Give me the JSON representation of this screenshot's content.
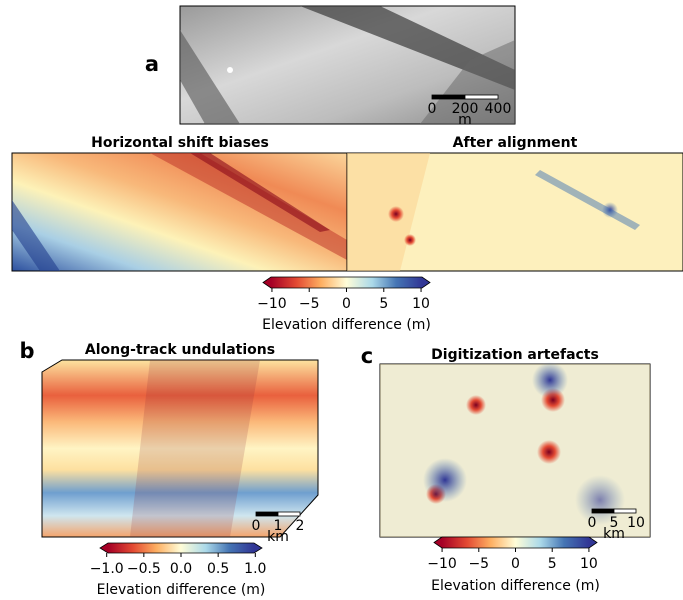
{
  "panels": [
    {
      "label": "a",
      "scale_bar": {
        "ticks": [
          0,
          200,
          400
        ],
        "unit": "m"
      },
      "subpanels": [
        {
          "title": "Horizontal shift biases"
        },
        {
          "title": "After alignment"
        }
      ],
      "colorbar": {
        "lim": [
          -11.2,
          11.2
        ],
        "ticks": [
          {
            "value": -10,
            "label": "−10"
          },
          {
            "value": -5,
            "label": "−5"
          },
          0,
          5,
          10
        ],
        "label": "Elevation difference (m)"
      }
    },
    {
      "label": "b",
      "title": "Along-track undulations",
      "scale_bar": {
        "ticks": [
          0,
          1,
          2
        ],
        "unit": "km"
      },
      "colorbar": {
        "lim": [
          -1.09,
          1.09
        ],
        "ticks": [
          {
            "value": -1,
            "label": "−1.0"
          },
          {
            "value": -0.5,
            "label": "−0.5"
          },
          {
            "value": 0,
            "label": "0.0"
          },
          0.5,
          {
            "value": 1,
            "label": "1.0"
          }
        ],
        "label": "Elevation difference (m)"
      }
    },
    {
      "label": "c",
      "title": "Digitization artefacts",
      "scale_bar": {
        "ticks": [
          0,
          5,
          10
        ],
        "unit": "km"
      },
      "colorbar": {
        "lim": [
          -11.1,
          11.1
        ],
        "ticks": [
          {
            "value": -10,
            "label": "−10"
          },
          {
            "value": -5,
            "label": "−5"
          },
          0,
          5,
          10
        ],
        "label": "Elevation difference (m)"
      }
    }
  ]
}
